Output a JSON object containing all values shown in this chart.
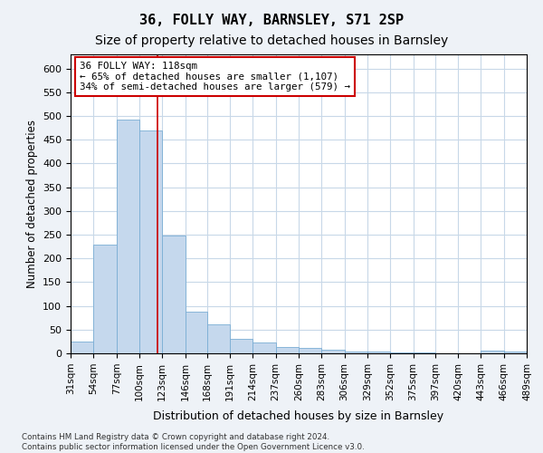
{
  "title": "36, FOLLY WAY, BARNSLEY, S71 2SP",
  "subtitle": "Size of property relative to detached houses in Barnsley",
  "xlabel": "Distribution of detached houses by size in Barnsley",
  "ylabel": "Number of detached properties",
  "footnote": "Contains HM Land Registry data © Crown copyright and database right 2024.\nContains public sector information licensed under the Open Government Licence v3.0.",
  "bar_color": "#c5d8ed",
  "bar_edge_color": "#7aadd4",
  "grid_color": "#c8d8e8",
  "annotation_box_color": "#cc0000",
  "annotation_text": "36 FOLLY WAY: 118sqm\n← 65% of detached houses are smaller (1,107)\n34% of semi-detached houses are larger (579) →",
  "property_line_x": 118,
  "bin_edges": [
    31,
    54,
    77,
    100,
    123,
    146,
    168,
    191,
    214,
    237,
    260,
    283,
    306,
    329,
    352,
    375,
    397,
    420,
    443,
    466,
    489
  ],
  "bar_heights": [
    25,
    230,
    492,
    470,
    248,
    88,
    62,
    30,
    22,
    13,
    11,
    8,
    3,
    3,
    2,
    2,
    0,
    0,
    6,
    4
  ],
  "ylim": [
    0,
    630
  ],
  "yticks": [
    0,
    50,
    100,
    150,
    200,
    250,
    300,
    350,
    400,
    450,
    500,
    550,
    600
  ],
  "background_color": "#eef2f7",
  "plot_bg_color": "#ffffff",
  "title_fontsize": 11,
  "subtitle_fontsize": 10,
  "tick_label_fontsize": 7.5
}
